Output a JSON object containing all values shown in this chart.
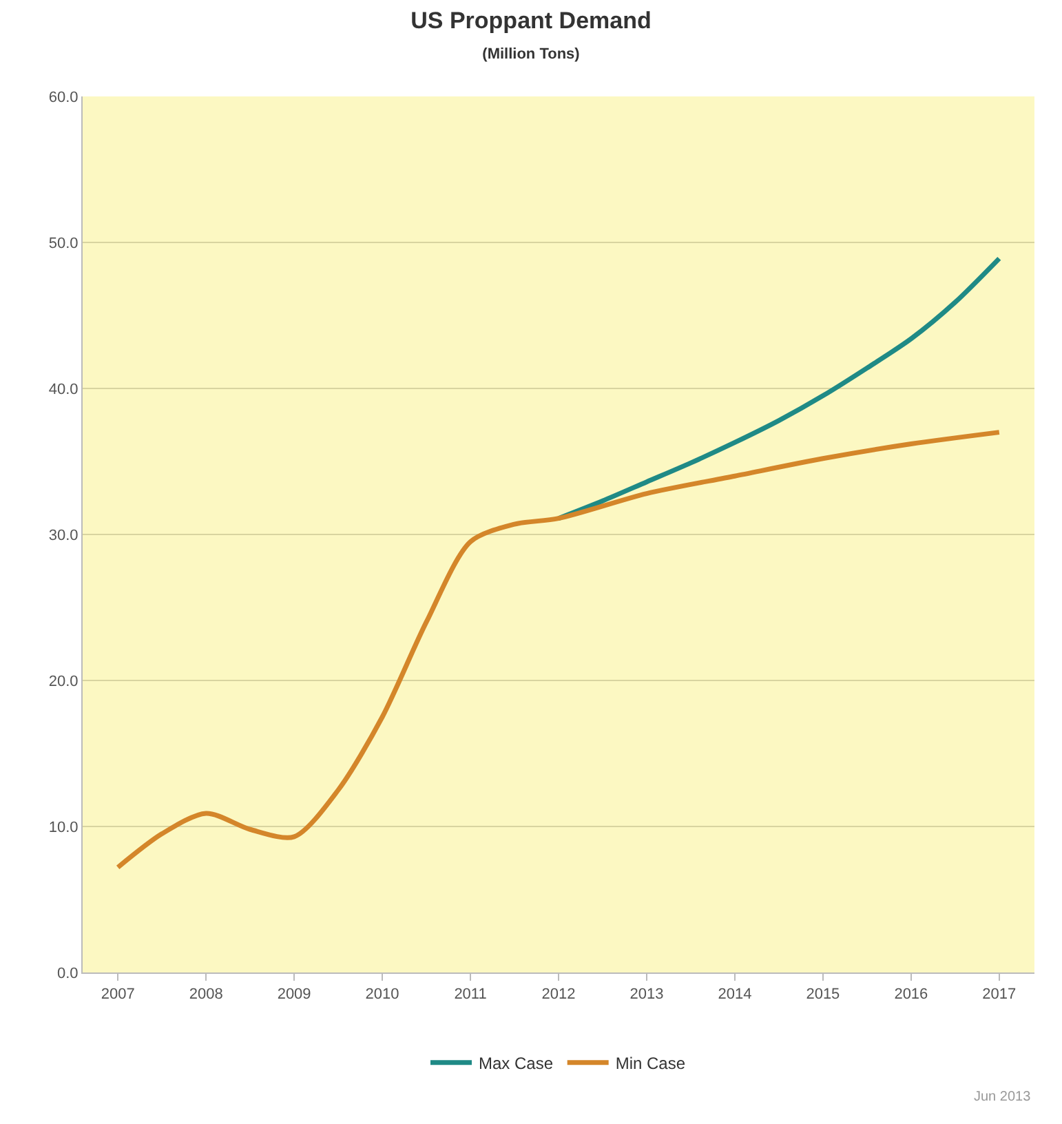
{
  "chart_data": {
    "type": "line",
    "title": "US Proppant Demand",
    "subtitle": "(Million Tons)",
    "series": [
      {
        "name": "Max Case",
        "color": "#1f8a86",
        "x": [
          2012,
          2012.5,
          2013,
          2013.5,
          2014,
          2014.5,
          2015,
          2015.5,
          2016,
          2016.5,
          2017
        ],
        "values": [
          31.1,
          32.3,
          33.6,
          34.9,
          36.3,
          37.8,
          39.5,
          41.4,
          43.4,
          45.9,
          48.9
        ]
      },
      {
        "name": "Min Case",
        "color": "#d4862a",
        "x": [
          2007,
          2007.5,
          2008,
          2008.5,
          2009,
          2009.5,
          2010,
          2010.5,
          2011,
          2011.5,
          2012,
          2013,
          2014,
          2015,
          2016,
          2017
        ],
        "values": [
          7.2,
          9.5,
          10.9,
          9.8,
          9.3,
          12.5,
          17.5,
          24.0,
          29.5,
          30.7,
          31.1,
          32.8,
          34.0,
          35.2,
          36.2,
          37.0
        ]
      }
    ],
    "xlim": [
      2006.6,
      2017.4
    ],
    "xticks": [
      2007,
      2008,
      2009,
      2010,
      2011,
      2012,
      2013,
      2014,
      2015,
      2016,
      2017
    ],
    "ylim": [
      0,
      60
    ],
    "yticks": [
      {
        "value": 0,
        "label": "0.0"
      },
      {
        "value": 10,
        "label": "10.0"
      },
      {
        "value": 20,
        "label": "20.0"
      },
      {
        "value": 30,
        "label": "30.0"
      },
      {
        "value": 40,
        "label": "40.0"
      },
      {
        "value": 50,
        "label": "50.0"
      },
      {
        "value": 60,
        "label": "60.0"
      }
    ],
    "grid": "y",
    "legend": "bottom",
    "marker": "none",
    "line_style": "solid",
    "annotations": [
      "Jun 2013"
    ]
  }
}
